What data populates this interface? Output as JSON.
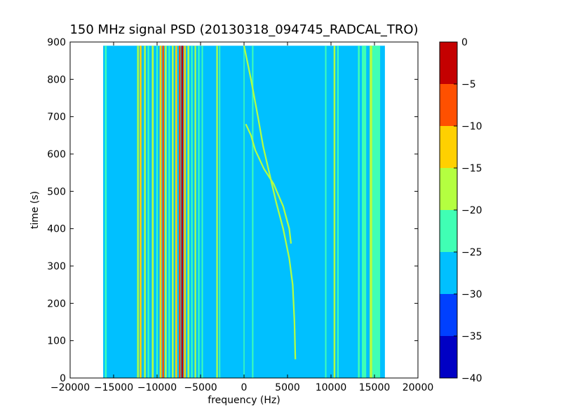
{
  "chart_data": {
    "type": "heatmap",
    "title": "150 MHz signal PSD (20130318_094745_RADCAL_TRO)",
    "xlabel": "frequency (Hz)",
    "ylabel": "time (s)",
    "xlim": [
      -20000,
      20000
    ],
    "ylim": [
      0,
      900
    ],
    "x_ticks": [
      "−20000",
      "−15000",
      "−10000",
      "−5000",
      "0",
      "5000",
      "10000",
      "15000",
      "20000"
    ],
    "y_ticks": [
      "0",
      "100",
      "200",
      "300",
      "400",
      "500",
      "600",
      "700",
      "800",
      "900"
    ],
    "data_extent": {
      "x": [
        -16200,
        16200
      ],
      "y": [
        0,
        890
      ]
    },
    "background_level": -27.5,
    "colorbar": {
      "range": [
        -40,
        0
      ],
      "ticks": [
        "0",
        "−5",
        "−10",
        "−15",
        "−20",
        "−25",
        "−30",
        "−35",
        "−40"
      ],
      "levels": [
        {
          "min": -40,
          "max": -35,
          "color": "#0000c4"
        },
        {
          "min": -35,
          "max": -30,
          "color": "#0040ff"
        },
        {
          "min": -30,
          "max": -25,
          "color": "#00c0ff"
        },
        {
          "min": -25,
          "max": -20,
          "color": "#40ffb4"
        },
        {
          "min": -20,
          "max": -15,
          "color": "#b4ff40"
        },
        {
          "min": -15,
          "max": -10,
          "color": "#ffd000"
        },
        {
          "min": -10,
          "max": -5,
          "color": "#ff5000"
        },
        {
          "min": -5,
          "max": 0,
          "color": "#c40000"
        }
      ]
    },
    "vertical_lines": [
      {
        "freq": -15900,
        "level": -22.5,
        "width_hz": 200
      },
      {
        "freq": -12200,
        "level": -17.5,
        "width_hz": 200
      },
      {
        "freq": -11900,
        "level": -12.5,
        "width_hz": 220
      },
      {
        "freq": -11400,
        "level": -17.5,
        "width_hz": 200
      },
      {
        "freq": -11000,
        "level": -22.5,
        "width_hz": 180
      },
      {
        "freq": -10500,
        "level": -17.5,
        "width_hz": 220
      },
      {
        "freq": -10000,
        "level": -22.5,
        "width_hz": 180
      },
      {
        "freq": -9600,
        "level": -12.5,
        "width_hz": 220
      },
      {
        "freq": -9300,
        "level": -7.5,
        "width_hz": 200
      },
      {
        "freq": -9000,
        "level": -17.5,
        "width_hz": 200
      },
      {
        "freq": -8600,
        "level": -22.5,
        "width_hz": 180
      },
      {
        "freq": -8200,
        "level": -17.5,
        "width_hz": 200
      },
      {
        "freq": -7800,
        "level": -12.5,
        "width_hz": 200
      },
      {
        "freq": -7400,
        "level": -7.5,
        "width_hz": 200
      },
      {
        "freq": -7100,
        "level": -2.5,
        "width_hz": 220
      },
      {
        "freq": -6800,
        "level": -12.5,
        "width_hz": 200
      },
      {
        "freq": -6400,
        "level": -17.5,
        "width_hz": 200
      },
      {
        "freq": -6000,
        "level": -22.5,
        "width_hz": 180
      },
      {
        "freq": -5600,
        "level": -17.5,
        "width_hz": 180
      },
      {
        "freq": -5200,
        "level": -22.5,
        "width_hz": 180
      },
      {
        "freq": -4800,
        "level": -22.5,
        "width_hz": 160
      },
      {
        "freq": -3100,
        "level": -17.5,
        "width_hz": 180
      },
      {
        "freq": -2800,
        "level": -22.5,
        "width_hz": 140
      },
      {
        "freq": 0,
        "level": -22.5,
        "width_hz": 120
      },
      {
        "freq": 1000,
        "level": -22.5,
        "width_hz": 160
      },
      {
        "freq": 9400,
        "level": -22.5,
        "width_hz": 160
      },
      {
        "freq": 10400,
        "level": -17.5,
        "width_hz": 200
      },
      {
        "freq": 10800,
        "level": -22.5,
        "width_hz": 180
      },
      {
        "freq": 13200,
        "level": -22.5,
        "width_hz": 200
      },
      {
        "freq": 13800,
        "level": -22.5,
        "width_hz": 500
      },
      {
        "freq": 14600,
        "level": -17.5,
        "width_hz": 300
      },
      {
        "freq": 15200,
        "level": -22.5,
        "width_hz": 900
      }
    ],
    "doppler_tracks": [
      {
        "level": -17.5,
        "points": [
          [
            5900,
            50
          ],
          [
            5800,
            150
          ],
          [
            5600,
            250
          ],
          [
            5200,
            320
          ],
          [
            4500,
            400
          ],
          [
            3700,
            470
          ],
          [
            3000,
            540
          ],
          [
            2200,
            620
          ],
          [
            1600,
            700
          ],
          [
            800,
            800
          ],
          [
            0,
            890
          ]
        ]
      },
      {
        "level": -17.5,
        "points": [
          [
            5400,
            360
          ],
          [
            5200,
            400
          ],
          [
            4500,
            460
          ],
          [
            3400,
            520
          ],
          [
            2300,
            560
          ],
          [
            1300,
            610
          ],
          [
            800,
            650
          ],
          [
            200,
            680
          ]
        ]
      }
    ]
  }
}
